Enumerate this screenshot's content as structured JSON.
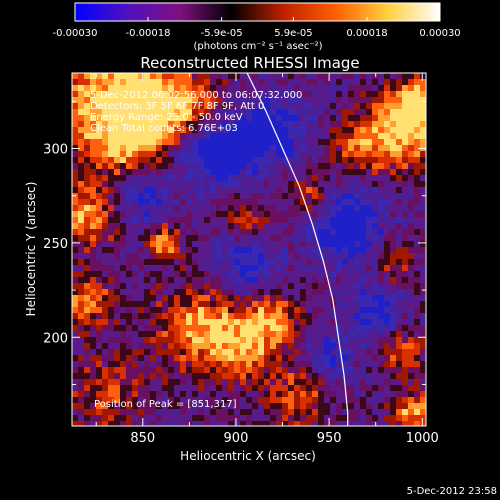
{
  "title": "Reconstructed RHESSI Image",
  "colorbar": {
    "tick_labels": [
      "-0.00030",
      "-0.00018",
      "-5.9e-05",
      "5.9e-05",
      "0.00018",
      "0.00030"
    ],
    "tick_values": [
      -0.0003,
      -0.00018,
      -5.9e-05,
      5.9e-05,
      0.00018,
      0.0003
    ],
    "range": [
      -0.0003,
      0.0003
    ],
    "units": "(photons cm⁻² s⁻¹ asec⁻²)",
    "colors": [
      "#0000ff",
      "#5010c0",
      "#801080",
      "#000000",
      "#c02000",
      "#ff6000",
      "#ffd040",
      "#ffffff"
    ]
  },
  "plot": {
    "xlabel": "Heliocentric X (arcsec)",
    "ylabel": "Heliocentric Y (arcsec)",
    "xlim": [
      812,
      1002
    ],
    "ylim": [
      153,
      340
    ],
    "x_ticks": [
      850,
      900,
      950,
      1000
    ],
    "x_tick_labels": [
      "850",
      "900",
      "950",
      "1000"
    ],
    "y_ticks": [
      200,
      250,
      300
    ],
    "y_tick_labels": [
      "200",
      "250",
      "300"
    ],
    "limb_color": "#ffffff",
    "limb_points": [
      [
        906,
        340
      ],
      [
        916,
        320
      ],
      [
        925,
        300
      ],
      [
        934,
        280
      ],
      [
        941,
        260
      ],
      [
        947,
        240
      ],
      [
        952,
        220
      ],
      [
        955,
        200
      ],
      [
        958,
        180
      ],
      [
        960,
        160
      ],
      [
        960,
        153
      ]
    ]
  },
  "info": {
    "line1": "5-Dec-2012 06:02:56.000 to 06:07:32.000",
    "line2": "Detectors: 3F 5F 6F 7F 8F 9F, Att 0",
    "line3": "Energy Range: 25.0 - 50.0 keV",
    "line4": "Clean   Total counts: 6.76E+03",
    "peak": "Position of Peak = [851,317]"
  },
  "timestamp": "5-Dec-2012 23:58",
  "sources": [
    {
      "x": 830,
      "y": 325,
      "r": 22,
      "v": 0.9
    },
    {
      "x": 855,
      "y": 320,
      "r": 14,
      "v": 1.0
    },
    {
      "x": 880,
      "y": 322,
      "r": 12,
      "v": 0.6
    },
    {
      "x": 840,
      "y": 300,
      "r": 10,
      "v": 0.5
    },
    {
      "x": 990,
      "y": 310,
      "r": 14,
      "v": 1.0
    },
    {
      "x": 998,
      "y": 325,
      "r": 8,
      "v": 0.9
    },
    {
      "x": 966,
      "y": 300,
      "r": 10,
      "v": 0.6
    },
    {
      "x": 818,
      "y": 265,
      "r": 12,
      "v": 0.8
    },
    {
      "x": 820,
      "y": 220,
      "r": 10,
      "v": 0.7
    },
    {
      "x": 862,
      "y": 250,
      "r": 6,
      "v": 0.9
    },
    {
      "x": 905,
      "y": 262,
      "r": 8,
      "v": 0.6
    },
    {
      "x": 940,
      "y": 275,
      "r": 8,
      "v": 0.6
    },
    {
      "x": 985,
      "y": 240,
      "r": 8,
      "v": 0.5
    },
    {
      "x": 880,
      "y": 205,
      "r": 16,
      "v": 0.8
    },
    {
      "x": 905,
      "y": 195,
      "r": 12,
      "v": 0.7
    },
    {
      "x": 920,
      "y": 210,
      "r": 10,
      "v": 0.7
    },
    {
      "x": 935,
      "y": 170,
      "r": 12,
      "v": 0.6
    },
    {
      "x": 990,
      "y": 192,
      "r": 8,
      "v": 0.6
    },
    {
      "x": 995,
      "y": 160,
      "r": 8,
      "v": 0.8
    },
    {
      "x": 830,
      "y": 170,
      "r": 14,
      "v": 0.5
    }
  ],
  "sinks": [
    {
      "x": 890,
      "y": 300,
      "r": 14,
      "v": 1.0
    },
    {
      "x": 920,
      "y": 310,
      "r": 12,
      "v": 0.8
    },
    {
      "x": 960,
      "y": 260,
      "r": 14,
      "v": 0.9
    },
    {
      "x": 905,
      "y": 240,
      "r": 12,
      "v": 0.7
    },
    {
      "x": 975,
      "y": 215,
      "r": 10,
      "v": 0.7
    },
    {
      "x": 950,
      "y": 190,
      "r": 10,
      "v": 0.6
    },
    {
      "x": 850,
      "y": 275,
      "r": 10,
      "v": 0.6
    }
  ]
}
